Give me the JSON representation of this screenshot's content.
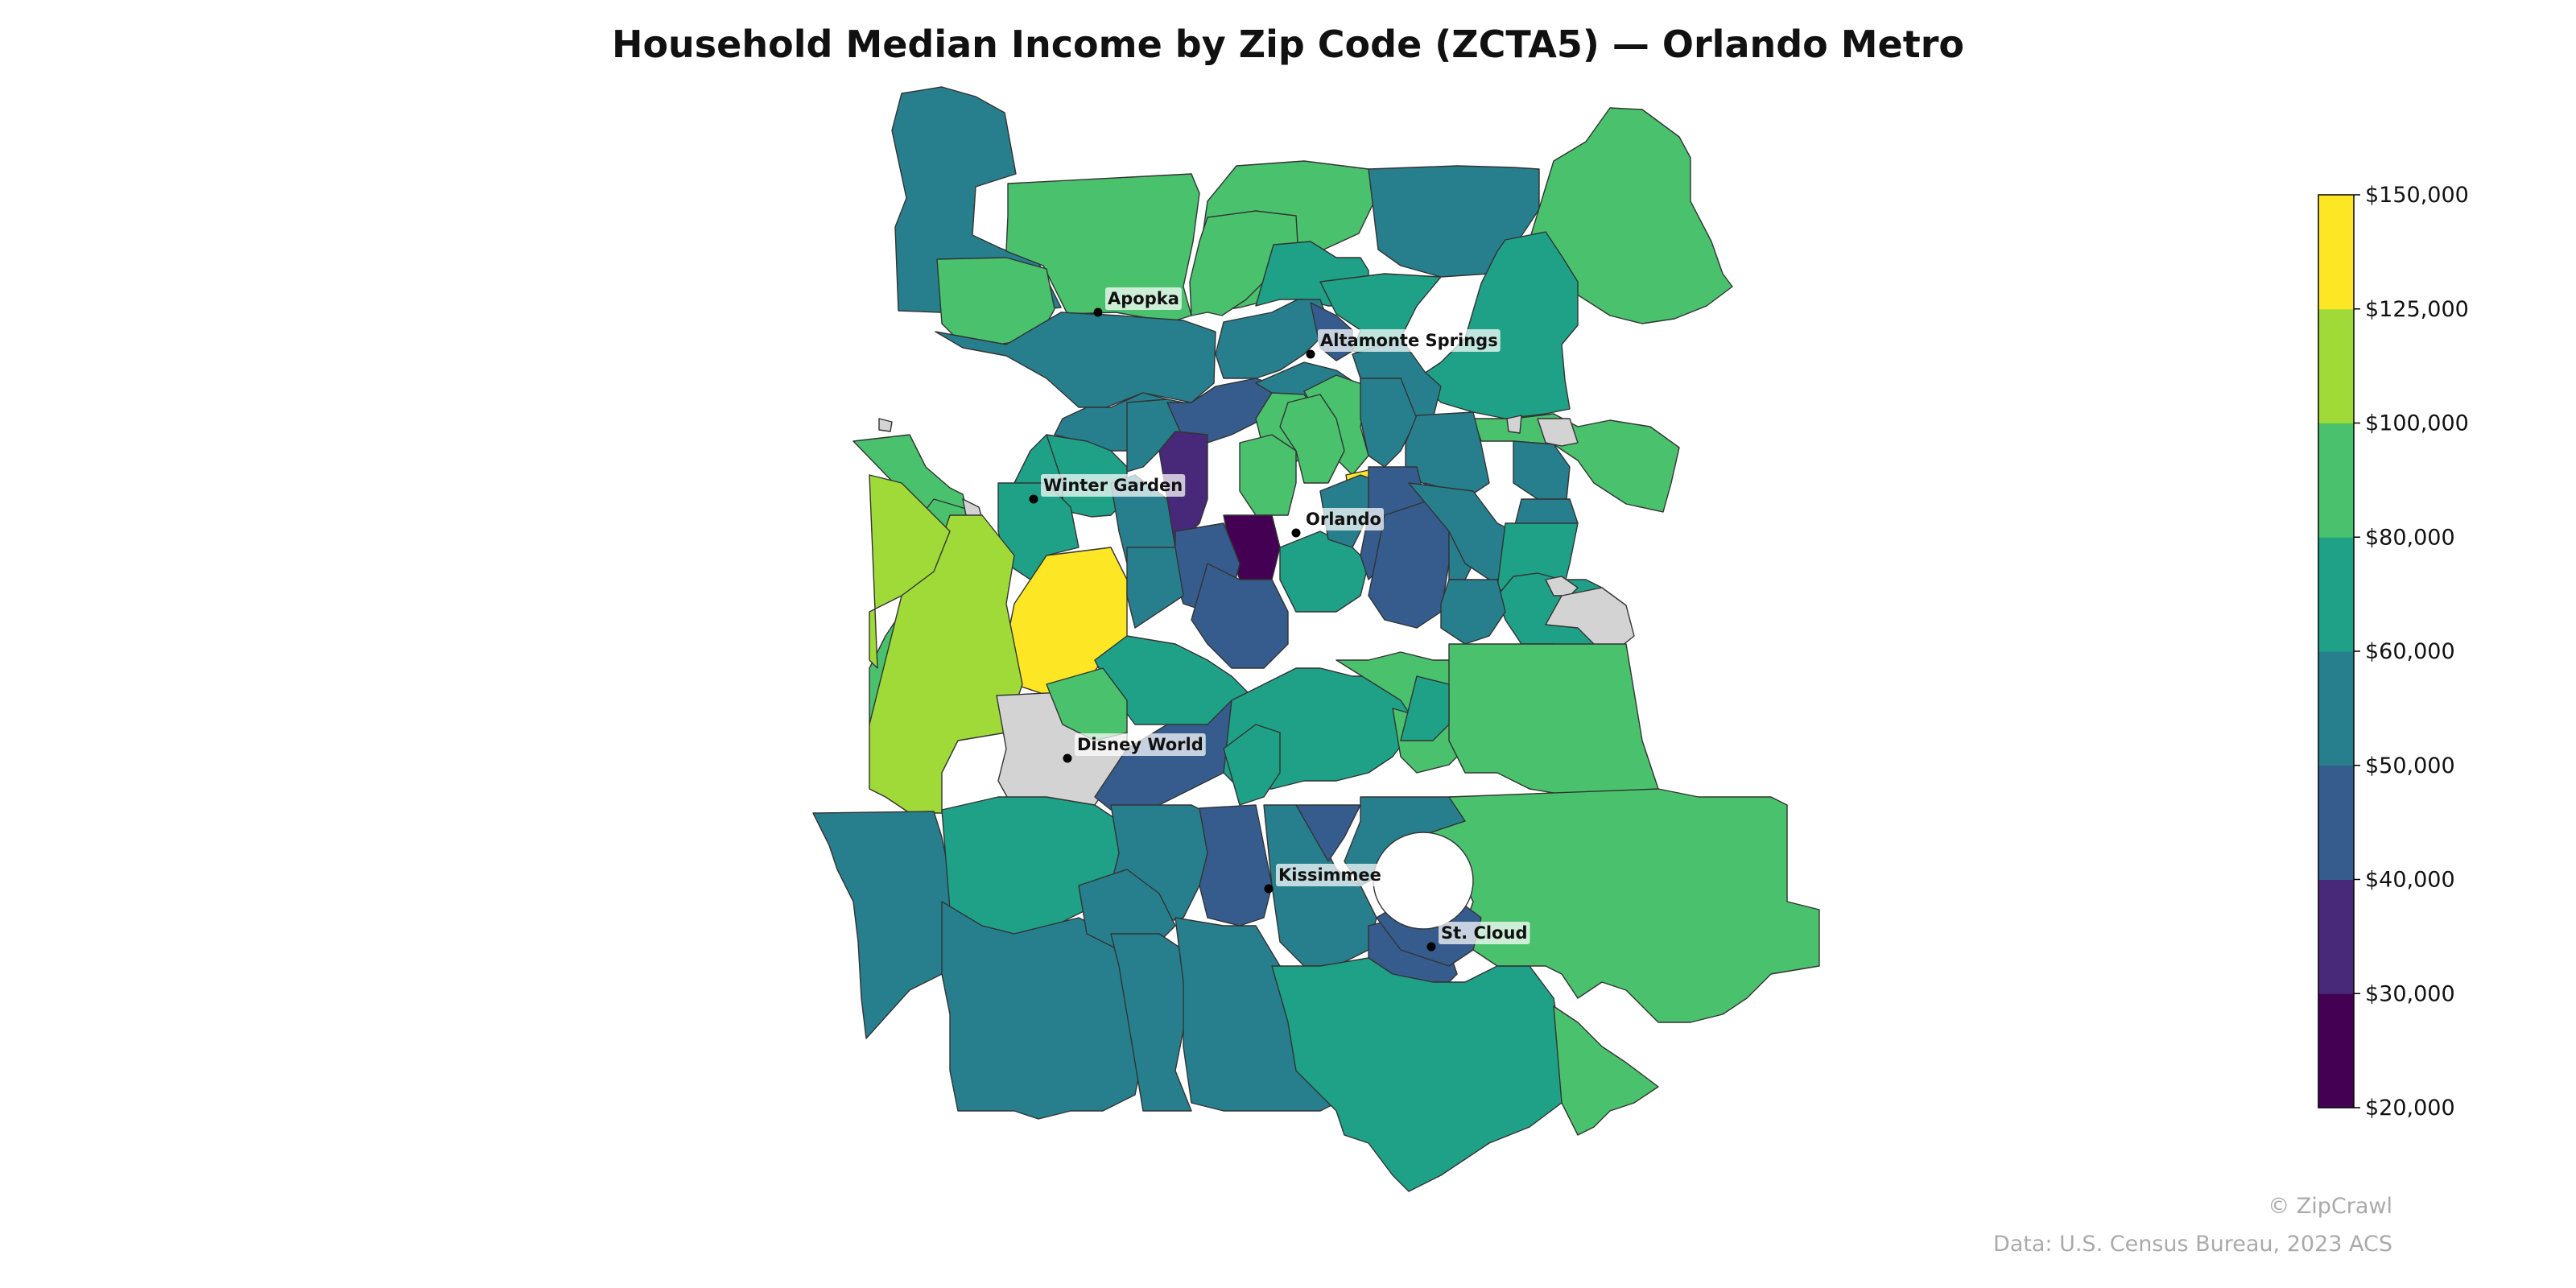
{
  "title": "Household Median Income by Zip Code (ZCTA5) — Orlando Metro",
  "colorbar": {
    "ticks": [
      "$20,000",
      "$30,000",
      "$40,000",
      "$50,000",
      "$60,000",
      "$80,000",
      "$100,000",
      "$125,000",
      "$150,000"
    ],
    "bin_colors": [
      "#440154",
      "#482878",
      "#365c8d",
      "#277f8e",
      "#1fa187",
      "#4ac16d",
      "#a0da39",
      "#fde725"
    ]
  },
  "no_data_color": "#d3d3d3",
  "cities": [
    {
      "name": "Apopka"
    },
    {
      "name": "Altamonte Springs"
    },
    {
      "name": "Winter Garden"
    },
    {
      "name": "Orlando"
    },
    {
      "name": "Disney World"
    },
    {
      "name": "Kissimmee"
    },
    {
      "name": "St. Cloud"
    }
  ],
  "attribution": {
    "copyright": "© ZipCrawl",
    "source": "Data: U.S. Census Bureau, 2023 ACS"
  }
}
